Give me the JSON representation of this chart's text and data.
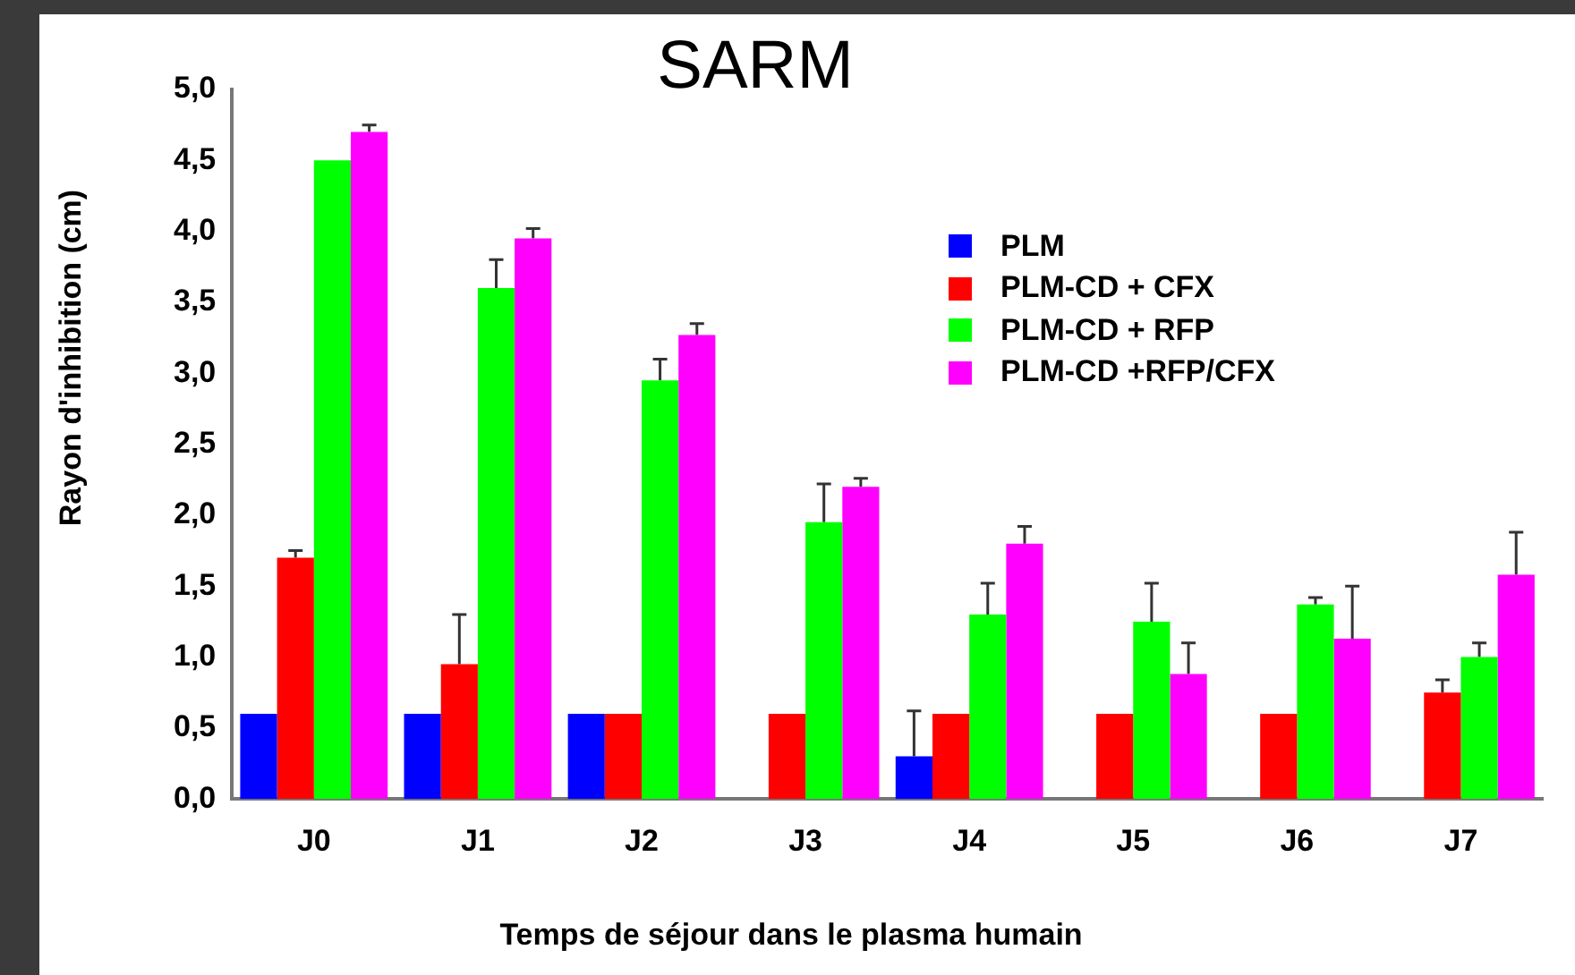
{
  "chart_data": {
    "type": "bar",
    "title": "SARM",
    "xlabel": "Temps de séjour dans le plasma humain",
    "ylabel": "Rayon d'inhibition (cm)",
    "categories": [
      "J0",
      "J1",
      "J2",
      "J3",
      "J4",
      "J5",
      "J6",
      "J7"
    ],
    "series": [
      {
        "name": "PLM",
        "color": "#0000ff",
        "values": [
          0.6,
          0.6,
          0.6,
          null,
          0.3,
          null,
          null,
          null
        ],
        "errors": [
          null,
          null,
          null,
          null,
          [
            0.3,
            0.62
          ],
          null,
          null,
          null
        ]
      },
      {
        "name": "PLM-CD + CFX",
        "color": "#ff0000",
        "values": [
          1.7,
          0.95,
          0.6,
          0.6,
          0.6,
          0.6,
          0.6,
          0.75
        ],
        "errors": [
          [
            1.7,
            1.75
          ],
          [
            0.95,
            1.3
          ],
          null,
          null,
          null,
          null,
          null,
          [
            0.75,
            0.84
          ]
        ]
      },
      {
        "name": "PLM-CD + RFP",
        "color": "#00ff00",
        "values": [
          4.5,
          3.6,
          2.95,
          1.95,
          1.3,
          1.25,
          1.37,
          1.0
        ],
        "errors": [
          null,
          [
            3.6,
            3.8
          ],
          [
            2.95,
            3.1
          ],
          [
            1.95,
            2.22
          ],
          [
            1.3,
            1.52
          ],
          [
            1.25,
            1.52
          ],
          [
            1.37,
            1.42
          ],
          [
            1.0,
            1.1
          ]
        ]
      },
      {
        "name": "PLM-CD +RFP/CFX",
        "color": "#ff00ff",
        "values": [
          4.7,
          3.95,
          3.27,
          2.2,
          1.8,
          0.88,
          1.13,
          1.58
        ],
        "errors": [
          [
            4.7,
            4.75
          ],
          [
            3.95,
            4.02
          ],
          [
            3.27,
            3.35
          ],
          [
            2.2,
            2.26
          ],
          [
            1.8,
            1.92
          ],
          [
            0.88,
            1.1
          ],
          [
            1.13,
            1.5
          ],
          [
            1.58,
            1.88
          ]
        ]
      }
    ],
    "ylim": [
      0,
      5
    ],
    "yticks": [
      {
        "value": 0,
        "label": "0,0"
      },
      {
        "value": 0.5,
        "label": "0,5"
      },
      {
        "value": 1,
        "label": "1,0"
      },
      {
        "value": 1.5,
        "label": "1,5"
      },
      {
        "value": 2,
        "label": "2,0"
      },
      {
        "value": 2.5,
        "label": "2,5"
      },
      {
        "value": 3,
        "label": "3,0"
      },
      {
        "value": 3.5,
        "label": "3,5"
      },
      {
        "value": 4,
        "label": "4,0"
      },
      {
        "value": 4.5,
        "label": "4,5"
      },
      {
        "value": 5,
        "label": "5,0"
      }
    ],
    "grid": false,
    "legend": "top right"
  }
}
